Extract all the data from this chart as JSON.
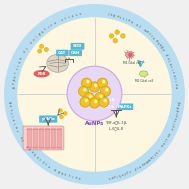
{
  "bg_color": "#f0f0f0",
  "outer_ring_color": "#b8ddf0",
  "inner_bg_color": "#fdf6e0",
  "center_circle_color": "#e8d8f5",
  "center_circle_border": "#c8a8e0",
  "gold_color": "#f0c030",
  "gold_border": "#c8a000",
  "gold_shine": "#fff8a0",
  "text_color": "#444444",
  "blue_label": "#5bb8d4",
  "red_label": "#e06060",
  "green_label": "#88bb44",
  "center_label": "AuNPs",
  "center_label_color": "#7a4a9e",
  "outer_texts": {
    "top_left": "Reduction of oxidative stress",
    "top_right": "Induction of macrophage polarization",
    "bottom_left": "Restraint of leukocyte adhesion",
    "bottom_right": "Suppressive action inflammatory cytokines"
  }
}
